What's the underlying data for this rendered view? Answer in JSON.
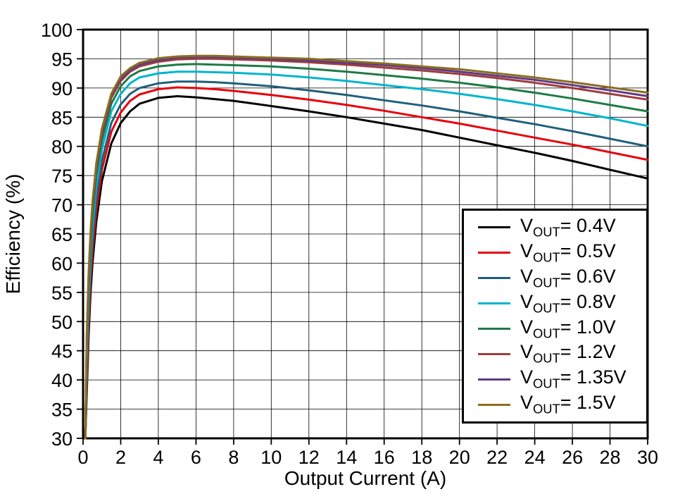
{
  "background_color": "#ffffff",
  "chart_data": {
    "type": "line",
    "title": "",
    "xlabel": "Output Current (A)",
    "ylabel": "Efficiency (%)",
    "xlim": [
      0,
      30
    ],
    "ylim": [
      30,
      100
    ],
    "x_ticks": [
      0,
      2,
      4,
      6,
      8,
      10,
      12,
      14,
      16,
      18,
      20,
      22,
      24,
      26,
      28,
      30
    ],
    "y_ticks": [
      30,
      35,
      40,
      45,
      50,
      55,
      60,
      65,
      70,
      75,
      80,
      85,
      90,
      95,
      100
    ],
    "grid": true,
    "legend_position": "bottom-right",
    "legend_label_prefix": "V",
    "legend_label_subscript": "OUT",
    "legend_label_equals": "= ",
    "x": [
      0.12,
      0.2,
      0.3,
      0.4,
      0.5,
      0.7,
      1.0,
      1.5,
      2,
      2.5,
      3,
      4,
      5,
      6,
      7,
      8,
      10,
      12,
      14,
      16,
      18,
      20,
      22,
      24,
      26,
      28,
      30
    ],
    "series": [
      {
        "name": "VOUT= 0.4V",
        "vout": "0.4V",
        "color": "#000000",
        "y": [
          30,
          38,
          48,
          55,
          60,
          67,
          74,
          80.5,
          84,
          86,
          87.3,
          88.3,
          88.6,
          88.4,
          88.1,
          87.8,
          86.9,
          86.0,
          85.0,
          83.9,
          82.8,
          81.5,
          80.2,
          78.9,
          77.5,
          76.0,
          74.5
        ]
      },
      {
        "name": "VOUT= 0.5V",
        "vout": "0.5V",
        "color": "#e8000b",
        "y": [
          30,
          40,
          50,
          57,
          62,
          69,
          76,
          82.5,
          85.8,
          87.8,
          88.9,
          89.8,
          90.1,
          90.0,
          89.8,
          89.5,
          88.8,
          88.0,
          87.1,
          86.1,
          85.0,
          83.9,
          82.7,
          81.5,
          80.3,
          79.0,
          77.7
        ]
      },
      {
        "name": "VOUT= 0.6V",
        "vout": "0.6V",
        "color": "#1f5f7c",
        "y": [
          30,
          42,
          52,
          59,
          64,
          71,
          77.5,
          84,
          87.2,
          89.0,
          90.0,
          90.8,
          91.1,
          91.1,
          91.0,
          90.8,
          90.3,
          89.6,
          88.8,
          87.9,
          87.0,
          86.0,
          84.9,
          83.8,
          82.6,
          81.3,
          80.0
        ]
      },
      {
        "name": "VOUT= 0.8V",
        "vout": "0.8V",
        "color": "#00b5cc",
        "y": [
          30,
          44,
          54,
          61,
          66,
          73,
          79.5,
          86,
          89.0,
          90.8,
          91.8,
          92.5,
          92.8,
          92.8,
          92.7,
          92.6,
          92.3,
          91.8,
          91.2,
          90.5,
          89.8,
          89.0,
          88.1,
          87.1,
          86.0,
          84.8,
          83.5
        ]
      },
      {
        "name": "VOUT= 1.0V",
        "vout": "1.0V",
        "color": "#1e7a45",
        "y": [
          30,
          46,
          56,
          63,
          68,
          75,
          81,
          87.3,
          90.3,
          92.0,
          92.9,
          93.7,
          94.0,
          94.1,
          94.0,
          93.9,
          93.7,
          93.3,
          92.8,
          92.2,
          91.6,
          90.9,
          90.1,
          89.2,
          88.2,
          87.1,
          86.0
        ]
      },
      {
        "name": "VOUT= 1.2V",
        "vout": "1.2V",
        "color": "#9e3d3c",
        "y": [
          30,
          47,
          57.5,
          64.5,
          69.5,
          76,
          82,
          88.3,
          91.2,
          92.8,
          93.7,
          94.5,
          94.9,
          95.0,
          95.0,
          94.9,
          94.7,
          94.4,
          94.0,
          93.5,
          93.0,
          92.4,
          91.7,
          90.9,
          90.0,
          89.0,
          88.0
        ]
      },
      {
        "name": "VOUT= 1.35V",
        "vout": "1.35V",
        "color": "#5f3a86",
        "y": [
          30,
          47.5,
          58,
          65,
          70,
          76.5,
          82.5,
          88.7,
          91.6,
          93.1,
          94.0,
          94.8,
          95.2,
          95.3,
          95.3,
          95.2,
          95.0,
          94.7,
          94.3,
          93.9,
          93.4,
          92.8,
          92.1,
          91.4,
          90.5,
          89.6,
          88.6
        ]
      },
      {
        "name": "VOUT= 1.5V",
        "vout": "1.5V",
        "color": "#8c6d1e",
        "y": [
          30,
          48,
          58.5,
          65.5,
          70.5,
          77,
          83,
          89.0,
          92.0,
          93.4,
          94.3,
          95.1,
          95.4,
          95.5,
          95.5,
          95.4,
          95.2,
          95.0,
          94.6,
          94.2,
          93.7,
          93.2,
          92.5,
          91.8,
          91.0,
          90.1,
          89.2
        ]
      }
    ]
  }
}
